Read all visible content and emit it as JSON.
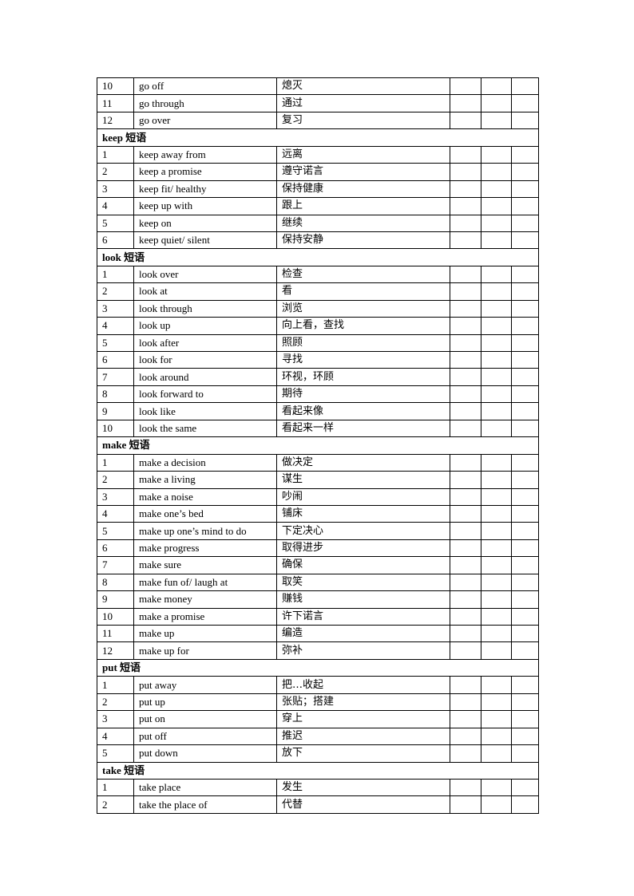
{
  "rows": [
    {
      "num": "10",
      "en": "go off",
      "zh": "熄灭"
    },
    {
      "num": "11",
      "en": "go through",
      "zh": "通过"
    },
    {
      "num": "12",
      "en": "go over",
      "zh": "复习"
    },
    {
      "section": "keep 短语"
    },
    {
      "num": "1",
      "en": "keep away from",
      "zh": "远离"
    },
    {
      "num": "2",
      "en": "keep a promise",
      "zh": "遵守诺言"
    },
    {
      "num": "3",
      "en": "keep fit/ healthy",
      "zh": "保持健康"
    },
    {
      "num": "4",
      "en": "keep up with",
      "zh": "跟上"
    },
    {
      "num": "5",
      "en": "keep on",
      "zh": "继续"
    },
    {
      "num": "6",
      "en": "keep quiet/  silent",
      "zh": "保持安静"
    },
    {
      "section": "look 短语"
    },
    {
      "num": "1",
      "en": "look over",
      "zh": "检查"
    },
    {
      "num": "2",
      "en": "look at",
      "zh": "看"
    },
    {
      "num": "3",
      "en": "look through",
      "zh": "浏览"
    },
    {
      "num": "4",
      "en": "look up",
      "zh": "向上看，查找"
    },
    {
      "num": "5",
      "en": "look after",
      "zh": "照顾"
    },
    {
      "num": "6",
      "en": "look for",
      "zh": "寻找"
    },
    {
      "num": "7",
      "en": "look around",
      "zh": "环视，环顾"
    },
    {
      "num": "8",
      "en": "look forward to",
      "zh": "期待"
    },
    {
      "num": "9",
      "en": "look like",
      "zh": "看起来像"
    },
    {
      "num": "10",
      "en": "look the same",
      "zh": "看起来一样"
    },
    {
      "section": "make 短语"
    },
    {
      "num": "1",
      "en": "make a decision",
      "zh": "做决定"
    },
    {
      "num": "2",
      "en": "make a living",
      "zh": "谋生"
    },
    {
      "num": "3",
      "en": "make a noise",
      "zh": "吵闹"
    },
    {
      "num": "4",
      "en": "make one’s bed",
      "zh": "铺床"
    },
    {
      "num": "5",
      "en": "make up one’s mind to do",
      "zh": "下定决心"
    },
    {
      "num": "6",
      "en": "make progress",
      "zh": "取得进步"
    },
    {
      "num": "7",
      "en": "make sure",
      "zh": "确保"
    },
    {
      "num": "8",
      "en": "make fun of/ laugh at",
      "zh": "取笑"
    },
    {
      "num": "9",
      "en": "make money",
      "zh": "赚钱"
    },
    {
      "num": "10",
      "en": "make a promise",
      "zh": "许下诺言"
    },
    {
      "num": "11",
      "en": "make up",
      "zh": "编造"
    },
    {
      "num": "12",
      "en": "make up  for",
      "zh": "弥补"
    },
    {
      "section": "put  短语"
    },
    {
      "num": "1",
      "en": "put away",
      "zh": "把…收起"
    },
    {
      "num": "2",
      "en": "put up",
      "zh": "张贴；搭建"
    },
    {
      "num": "3",
      "en": "put on",
      "zh": "穿上"
    },
    {
      "num": "4",
      "en": "put off",
      "zh": "推迟"
    },
    {
      "num": "5",
      "en": "put down",
      "zh": "放下"
    },
    {
      "section": "take  短语"
    },
    {
      "num": "1",
      "en": "take place",
      "zh": "发生"
    },
    {
      "num": "2",
      "en": "take the place of",
      "zh": "代替"
    }
  ]
}
